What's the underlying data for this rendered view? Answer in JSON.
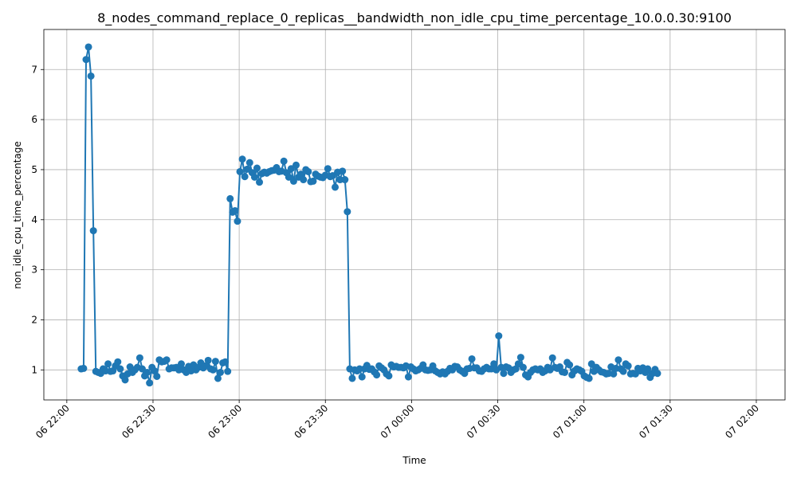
{
  "chart_data": {
    "type": "line",
    "title": "8_nodes_command_replace_0_replicas__bandwidth_non_idle_cpu_time_percentage_10.0.0.30:9100",
    "xlabel": "Time",
    "ylabel": "non_idle_cpu_time_percentage",
    "xlim": [
      "2024-06-06 21:52",
      "2024-06-07 02:10"
    ],
    "ylim": [
      0.4,
      7.8
    ],
    "x_ticks": [
      {
        "t": "2024-06-06 22:00",
        "label": "06 22:00"
      },
      {
        "t": "2024-06-06 22:30",
        "label": "06 22:30"
      },
      {
        "t": "2024-06-06 23:00",
        "label": "06 23:00"
      },
      {
        "t": "2024-06-06 23:30",
        "label": "06 23:30"
      },
      {
        "t": "2024-06-07 00:00",
        "label": "07 00:00"
      },
      {
        "t": "2024-06-07 00:30",
        "label": "07 00:30"
      },
      {
        "t": "2024-06-07 01:00",
        "label": "07 01:00"
      },
      {
        "t": "2024-06-07 01:30",
        "label": "07 01:30"
      },
      {
        "t": "2024-06-07 02:00",
        "label": "07 02:00"
      }
    ],
    "y_ticks": [
      1,
      2,
      3,
      4,
      5,
      6,
      7
    ],
    "grid": true,
    "color": "#1f77b4",
    "marker": "circle",
    "series": [
      {
        "x_start": "2024-06-06 22:05",
        "x_step_minutes": 0.85,
        "values": [
          1.02,
          1.03,
          7.2,
          7.45,
          6.87,
          3.78,
          0.97,
          0.95,
          0.93,
          1.02,
          0.98,
          1.12,
          0.97,
          0.98,
          1.08,
          1.16,
          1.02,
          0.88,
          0.8,
          0.92,
          1.06,
          0.95,
          1.0,
          1.05,
          1.24,
          1.02,
          0.88,
          0.95,
          0.74,
          1.05,
          0.98,
          0.87,
          1.2,
          1.16,
          1.17,
          1.2,
          1.02,
          1.04,
          1.04,
          1.05,
          1.0,
          1.12,
          1.0,
          0.95,
          1.07,
          0.98,
          1.1,
          1.0,
          1.05,
          1.14,
          1.04,
          1.08,
          1.19,
          1.02,
          1.0,
          1.17,
          0.83,
          0.95,
          1.14,
          1.16,
          0.97,
          4.42,
          4.15,
          4.18,
          3.97,
          4.96,
          5.21,
          4.86,
          5.01,
          5.14,
          4.94,
          4.85,
          5.03,
          4.75,
          4.92,
          4.95,
          4.93,
          4.96,
          4.98,
          4.99,
          5.04,
          4.96,
          4.97,
          5.17,
          4.94,
          4.85,
          5.02,
          4.77,
          5.09,
          4.85,
          4.91,
          4.8,
          5.0,
          4.96,
          4.76,
          4.77,
          4.91,
          4.87,
          4.85,
          4.84,
          4.89,
          5.02,
          4.86,
          4.88,
          4.65,
          4.95,
          4.8,
          4.97,
          4.8,
          4.16,
          1.02,
          0.83,
          1.0,
          0.98,
          1.02,
          0.86,
          1.02,
          1.09,
          1.01,
          1.02,
          0.96,
          0.9,
          1.08,
          1.04,
          1.0,
          0.92,
          0.88,
          1.1,
          1.06,
          1.07,
          1.05,
          1.05,
          1.04,
          1.08,
          0.86,
          1.06,
          1.02,
          0.98,
          1.0,
          1.03,
          1.1,
          1.0,
          0.99,
          1.0,
          1.08,
          0.98,
          0.95,
          0.92,
          0.96,
          0.92,
          0.97,
          1.03,
          1.0,
          1.07,
          1.06,
          1.0,
          0.97,
          0.93,
          1.02,
          1.03,
          1.22,
          1.04,
          1.04,
          0.98,
          0.97,
          1.02,
          1.05,
          1.02,
          1.02,
          1.12,
          1.0,
          1.68,
          1.05,
          0.93,
          1.06,
          1.04,
          0.95,
          1.0,
          1.02,
          1.12,
          1.25,
          1.05,
          0.9,
          0.86,
          0.95,
          1.0,
          1.02,
          1.0,
          1.02,
          0.95,
          0.98,
          1.05,
          1.0,
          1.24,
          1.05,
          1.03,
          1.06,
          0.96,
          0.95,
          1.15,
          1.1,
          0.9,
          0.98,
          1.02,
          1.0,
          0.97,
          0.88,
          0.85,
          0.83,
          1.12,
          0.97,
          1.05,
          1.0,
          0.96,
          0.95,
          0.92,
          0.93,
          1.06,
          0.92,
          1.03,
          1.2,
          1.02,
          0.97,
          1.12,
          1.08,
          0.92,
          0.93,
          0.92,
          1.03,
          0.98,
          1.04,
          0.95,
          1.02,
          0.85,
          0.93,
          1.01,
          0.93
        ]
      }
    ]
  }
}
